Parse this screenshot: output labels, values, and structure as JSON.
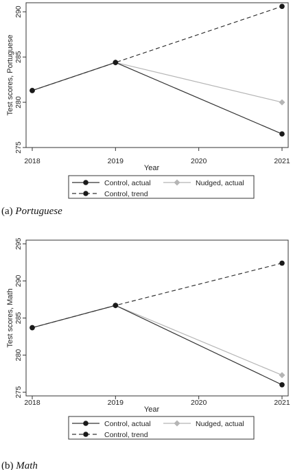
{
  "chart_data": [
    {
      "type": "line",
      "caption_label": "(a)",
      "caption_title": "Portuguese",
      "xlabel": "Year",
      "ylabel": "Test scores, Portuguese",
      "x": [
        2018,
        2019,
        2020,
        2021
      ],
      "xticks": [
        "2018",
        "2019",
        "2020",
        "2021"
      ],
      "ylim": [
        275,
        291
      ],
      "yticks": [
        "275",
        "280",
        "285",
        "290"
      ],
      "series": [
        {
          "name": "Control, actual",
          "style": "solid",
          "color": "#333333",
          "marker": "circle",
          "x": [
            2018,
            2019,
            2021
          ],
          "values": [
            281.3,
            284.4,
            276.5
          ]
        },
        {
          "name": "Nudged, actual",
          "style": "solid",
          "color": "#b5b5b5",
          "marker": "diamond",
          "x": [
            2019,
            2021
          ],
          "values": [
            284.4,
            280.0
          ]
        },
        {
          "name": "Control, trend",
          "style": "dashed",
          "color": "#333333",
          "marker": "circle",
          "x": [
            2018,
            2019,
            2021
          ],
          "values": [
            281.3,
            284.4,
            290.6
          ]
        }
      ]
    },
    {
      "type": "line",
      "caption_label": "(b)",
      "caption_title": "Math",
      "xlabel": "Year",
      "ylabel": "Test scores, Math",
      "x": [
        2018,
        2019,
        2020,
        2021
      ],
      "xticks": [
        "2018",
        "2019",
        "2020",
        "2021"
      ],
      "ylim": [
        274.5,
        295.5
      ],
      "yticks": [
        "275",
        "280",
        "285",
        "290",
        "295"
      ],
      "series": [
        {
          "name": "Control, actual",
          "style": "solid",
          "color": "#333333",
          "marker": "circle",
          "x": [
            2018,
            2019,
            2021
          ],
          "values": [
            283.7,
            286.7,
            276.0
          ]
        },
        {
          "name": "Nudged, actual",
          "style": "solid",
          "color": "#b5b5b5",
          "marker": "diamond",
          "x": [
            2019,
            2021
          ],
          "values": [
            286.7,
            277.3
          ]
        },
        {
          "name": "Control, trend",
          "style": "dashed",
          "color": "#333333",
          "marker": "circle",
          "x": [
            2018,
            2019,
            2021
          ],
          "values": [
            283.7,
            286.7,
            292.4
          ]
        }
      ]
    }
  ]
}
